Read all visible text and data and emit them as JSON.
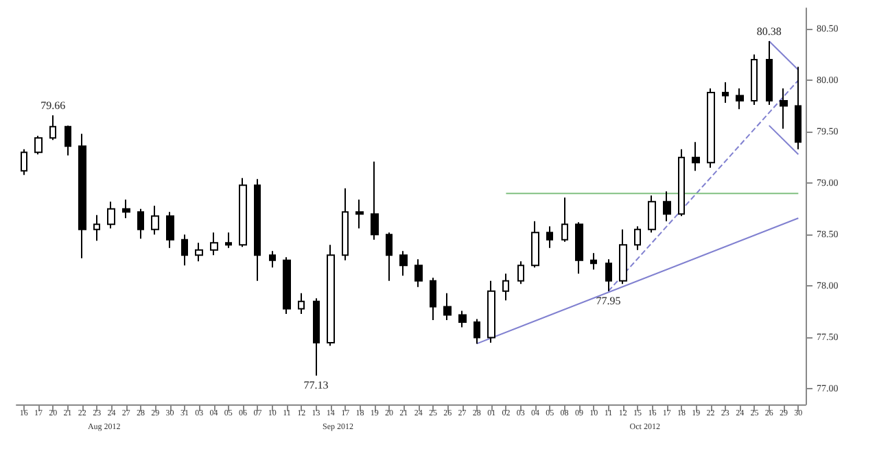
{
  "chart_data": {
    "type": "candlestick",
    "color": "#000000",
    "categories": [
      "16",
      "17",
      "20",
      "21",
      "22",
      "23",
      "24",
      "27",
      "28",
      "29",
      "30",
      "31",
      "03",
      "04",
      "05",
      "06",
      "07",
      "10",
      "11",
      "12",
      "13",
      "14",
      "17",
      "18",
      "19",
      "20",
      "21",
      "24",
      "25",
      "26",
      "27",
      "28",
      "01",
      "02",
      "03",
      "04",
      "05",
      "08",
      "09",
      "10",
      "11",
      "12",
      "15",
      "16",
      "17",
      "18",
      "19",
      "22",
      "23",
      "24",
      "25",
      "26",
      "29",
      "30"
    ],
    "ohlc": [
      [
        79.12,
        79.33,
        79.08,
        79.3
      ],
      [
        79.3,
        79.46,
        79.28,
        79.44
      ],
      [
        79.44,
        79.66,
        79.42,
        79.55
      ],
      [
        79.55,
        79.56,
        79.27,
        79.36
      ],
      [
        79.36,
        79.48,
        78.27,
        78.55
      ],
      [
        78.55,
        78.69,
        78.44,
        78.6
      ],
      [
        78.6,
        78.82,
        78.56,
        78.75
      ],
      [
        78.75,
        78.84,
        78.66,
        78.72
      ],
      [
        78.72,
        78.75,
        78.46,
        78.55
      ],
      [
        78.55,
        78.78,
        78.5,
        78.68
      ],
      [
        78.68,
        78.72,
        78.37,
        78.45
      ],
      [
        78.45,
        78.5,
        78.2,
        78.3
      ],
      [
        78.3,
        78.42,
        78.24,
        78.35
      ],
      [
        78.35,
        78.52,
        78.3,
        78.42
      ],
      [
        78.42,
        78.52,
        78.37,
        78.4
      ],
      [
        78.4,
        79.05,
        78.38,
        78.98
      ],
      [
        78.98,
        79.04,
        78.05,
        78.3
      ],
      [
        78.3,
        78.34,
        78.18,
        78.25
      ],
      [
        78.25,
        78.28,
        77.73,
        77.78
      ],
      [
        77.78,
        77.93,
        77.73,
        77.85
      ],
      [
        77.85,
        77.88,
        77.13,
        77.45
      ],
      [
        77.45,
        78.4,
        77.42,
        78.3
      ],
      [
        78.3,
        78.95,
        78.25,
        78.72
      ],
      [
        78.72,
        78.84,
        78.56,
        78.7
      ],
      [
        78.7,
        79.21,
        78.45,
        78.5
      ],
      [
        78.5,
        78.52,
        78.05,
        78.3
      ],
      [
        78.3,
        78.34,
        78.1,
        78.2
      ],
      [
        78.2,
        78.26,
        77.99,
        78.05
      ],
      [
        78.05,
        78.08,
        77.67,
        77.8
      ],
      [
        77.8,
        77.93,
        77.67,
        77.72
      ],
      [
        77.72,
        77.76,
        77.6,
        77.65
      ],
      [
        77.65,
        77.68,
        77.44,
        77.5
      ],
      [
        77.5,
        78.05,
        77.45,
        77.95
      ],
      [
        77.95,
        78.12,
        77.86,
        78.05
      ],
      [
        78.05,
        78.24,
        78.02,
        78.2
      ],
      [
        78.2,
        78.63,
        78.18,
        78.52
      ],
      [
        78.52,
        78.58,
        78.37,
        78.45
      ],
      [
        78.45,
        78.86,
        78.43,
        78.6
      ],
      [
        78.6,
        78.62,
        78.12,
        78.25
      ],
      [
        78.25,
        78.32,
        78.16,
        78.22
      ],
      [
        78.22,
        78.26,
        77.95,
        78.05
      ],
      [
        78.05,
        78.55,
        78.02,
        78.4
      ],
      [
        78.4,
        78.58,
        78.35,
        78.55
      ],
      [
        78.55,
        78.88,
        78.52,
        78.82
      ],
      [
        78.82,
        78.92,
        78.63,
        78.7
      ],
      [
        78.7,
        79.33,
        78.68,
        79.25
      ],
      [
        79.25,
        79.4,
        79.12,
        79.2
      ],
      [
        79.2,
        79.92,
        79.15,
        79.88
      ],
      [
        79.88,
        79.98,
        79.78,
        79.85
      ],
      [
        79.85,
        79.92,
        79.72,
        79.8
      ],
      [
        79.8,
        80.25,
        79.76,
        80.2
      ],
      [
        80.2,
        80.38,
        79.76,
        79.8
      ],
      [
        79.8,
        79.92,
        79.53,
        79.75
      ],
      [
        79.75,
        80.13,
        79.33,
        79.4
      ]
    ],
    "series": [
      {
        "type": "line",
        "color": "#8080d0",
        "line_style": "solid",
        "values": [
          null,
          null,
          null,
          null,
          null,
          null,
          null,
          null,
          null,
          null,
          null,
          null,
          null,
          null,
          null,
          null,
          null,
          null,
          null,
          null,
          null,
          null,
          null,
          null,
          null,
          null,
          null,
          null,
          null,
          null,
          null,
          77.44,
          null,
          null,
          null,
          null,
          null,
          null,
          null,
          null,
          null,
          null,
          null,
          null,
          null,
          null,
          null,
          null,
          null,
          null,
          null,
          null,
          null,
          78.66
        ]
      },
      {
        "type": "line",
        "color": "#8080d0",
        "line_style": "dashed",
        "values": [
          null,
          null,
          null,
          null,
          null,
          null,
          null,
          null,
          null,
          null,
          null,
          null,
          null,
          null,
          null,
          null,
          null,
          null,
          null,
          null,
          null,
          null,
          null,
          null,
          null,
          null,
          null,
          null,
          null,
          null,
          null,
          null,
          null,
          null,
          null,
          null,
          null,
          null,
          null,
          null,
          77.95,
          null,
          null,
          null,
          null,
          null,
          null,
          null,
          null,
          null,
          null,
          null,
          null,
          80.0
        ]
      },
      {
        "type": "line",
        "color": "#8080d0",
        "line_style": "solid",
        "values": [
          null,
          null,
          null,
          null,
          null,
          null,
          null,
          null,
          null,
          null,
          null,
          null,
          null,
          null,
          null,
          null,
          null,
          null,
          null,
          null,
          null,
          null,
          null,
          null,
          null,
          null,
          null,
          null,
          null,
          null,
          null,
          null,
          null,
          null,
          null,
          null,
          null,
          null,
          null,
          null,
          null,
          null,
          null,
          null,
          null,
          null,
          null,
          null,
          null,
          null,
          null,
          80.38,
          null,
          80.1
        ]
      },
      {
        "type": "line",
        "color": "#8080d0",
        "line_style": "solid",
        "values": [
          null,
          null,
          null,
          null,
          null,
          null,
          null,
          null,
          null,
          null,
          null,
          null,
          null,
          null,
          null,
          null,
          null,
          null,
          null,
          null,
          null,
          null,
          null,
          null,
          null,
          null,
          null,
          null,
          null,
          null,
          null,
          null,
          null,
          null,
          null,
          null,
          null,
          null,
          null,
          null,
          null,
          null,
          null,
          null,
          null,
          null,
          null,
          null,
          null,
          null,
          null,
          79.56,
          null,
          79.28
        ]
      },
      {
        "type": "line",
        "color": "#80c080",
        "line_style": "solid",
        "values": [
          null,
          null,
          null,
          null,
          null,
          null,
          null,
          null,
          null,
          null,
          null,
          null,
          null,
          null,
          null,
          null,
          null,
          null,
          null,
          null,
          null,
          null,
          null,
          null,
          null,
          null,
          null,
          null,
          null,
          null,
          null,
          null,
          null,
          78.9,
          null,
          null,
          null,
          null,
          null,
          null,
          null,
          null,
          null,
          null,
          null,
          null,
          null,
          null,
          null,
          null,
          null,
          null,
          null,
          78.9
        ]
      }
    ],
    "ylim": [
      76.85,
      80.7
    ],
    "yticks": [
      {
        "value": 77,
        "label": "77.00"
      },
      {
        "value": 77.5,
        "label": "77.50"
      },
      {
        "value": 78,
        "label": "78.00"
      },
      {
        "value": 78.5,
        "label": "78.50"
      },
      {
        "value": 79,
        "label": "79.00"
      },
      {
        "value": 79.5,
        "label": "79.50"
      },
      {
        "value": 80,
        "label": "80.00"
      },
      {
        "value": 80.5,
        "label": "80.50"
      }
    ],
    "annotations": [
      "79.66",
      "77.13",
      "77.95",
      "80.38",
      "Aug 2012",
      "Sep 2012",
      "Oct 2012"
    ],
    "grid": false
  }
}
